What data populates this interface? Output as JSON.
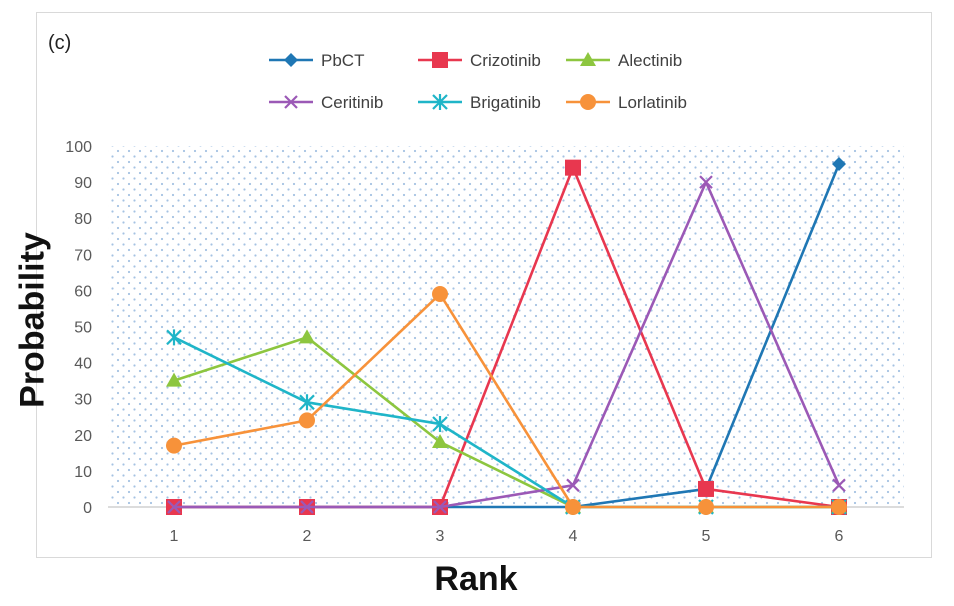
{
  "panel_label": "(c)",
  "chart_data": {
    "type": "line",
    "title": "",
    "xlabel": "Rank",
    "ylabel": "Probability",
    "categories": [
      "1",
      "2",
      "3",
      "4",
      "5",
      "6"
    ],
    "yticks": [
      "0",
      "10",
      "20",
      "30",
      "40",
      "50",
      "60",
      "70",
      "80",
      "90",
      "100"
    ],
    "ylim": [
      0,
      100
    ],
    "legend_position": "top",
    "series": [
      {
        "name": "PbCT",
        "color": "#1f77b4",
        "marker": "diamond",
        "values": [
          0,
          0,
          0,
          0,
          5,
          95
        ]
      },
      {
        "name": "Crizotinib",
        "color": "#e8374f",
        "marker": "square",
        "values": [
          0,
          0,
          0,
          94,
          5,
          0
        ]
      },
      {
        "name": "Alectinib",
        "color": "#8dc63f",
        "marker": "triangle",
        "values": [
          35,
          47,
          18,
          0,
          0,
          0
        ]
      },
      {
        "name": "Ceritinib",
        "color": "#9b59b6",
        "marker": "x",
        "values": [
          0,
          0,
          0,
          6,
          90,
          6
        ]
      },
      {
        "name": "Brigatinib",
        "color": "#1fb5c8",
        "marker": "star",
        "values": [
          47,
          29,
          23,
          0,
          0,
          0
        ]
      },
      {
        "name": "Lorlatinib",
        "color": "#f7923a",
        "marker": "circle",
        "values": [
          17,
          24,
          59,
          0,
          0,
          0
        ]
      }
    ]
  }
}
